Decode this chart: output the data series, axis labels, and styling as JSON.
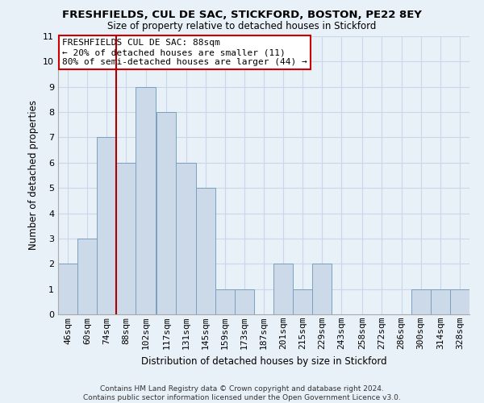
{
  "title": "FRESHFIELDS, CUL DE SAC, STICKFORD, BOSTON, PE22 8EY",
  "subtitle": "Size of property relative to detached houses in Stickford",
  "xlabel": "Distribution of detached houses by size in Stickford",
  "ylabel": "Number of detached properties",
  "footer_line1": "Contains HM Land Registry data © Crown copyright and database right 2024.",
  "footer_line2": "Contains public sector information licensed under the Open Government Licence v3.0.",
  "bins": [
    46,
    60,
    74,
    88,
    102,
    117,
    131,
    145,
    159,
    173,
    187,
    201,
    215,
    229,
    243,
    258,
    272,
    286,
    300,
    314,
    328
  ],
  "bin_width": 14,
  "counts": [
    2,
    3,
    7,
    6,
    9,
    8,
    6,
    5,
    1,
    1,
    0,
    2,
    1,
    2,
    0,
    0,
    0,
    0,
    1,
    1,
    1
  ],
  "bar_color": "#ccd9e8",
  "bar_edge_color": "#7aa0be",
  "grid_color": "#c8d8e8",
  "background_color": "#e8f0f8",
  "vline_x": 88,
  "vline_color": "#aa0000",
  "ylim": [
    0,
    11
  ],
  "yticks": [
    0,
    1,
    2,
    3,
    4,
    5,
    6,
    7,
    8,
    9,
    10,
    11
  ],
  "annotation_title": "FRESHFIELDS CUL DE SAC: 88sqm",
  "annotation_line1": "← 20% of detached houses are smaller (11)",
  "annotation_line2": "80% of semi-detached houses are larger (44) →",
  "annotation_box_color": "#ffffff",
  "annotation_edge_color": "#cc0000",
  "title_fontsize": 9.5,
  "subtitle_fontsize": 8.5,
  "axis_label_fontsize": 8.5,
  "tick_fontsize": 8,
  "annotation_fontsize": 8,
  "footer_fontsize": 6.5
}
